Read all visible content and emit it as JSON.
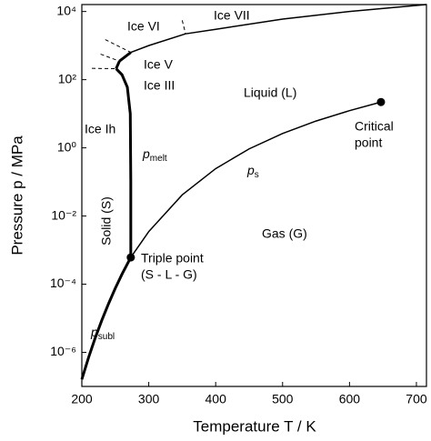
{
  "chart_data": {
    "type": "line",
    "xlabel": "Temperature T / K",
    "ylabel": "Pressure p / MPa",
    "xlim": [
      200,
      715
    ],
    "ylim": [
      1e-07,
      16000
    ],
    "ylog": true,
    "xticks": [
      200,
      300,
      400,
      500,
      600,
      700
    ],
    "yticks": [
      {
        "value": 1e-06,
        "label": "10⁻⁶"
      },
      {
        "value": 0.0001,
        "label": "10⁻⁴"
      },
      {
        "value": 0.01,
        "label": "10⁻²"
      },
      {
        "value": 1,
        "label": "10⁰"
      },
      {
        "value": 100,
        "label": "10²"
      },
      {
        "value": 10000,
        "label": "10⁴"
      }
    ],
    "color": "#000000",
    "series": [
      {
        "x": [
          200,
          210,
          220,
          230,
          240,
          250,
          260,
          273.16
        ],
        "values": [
          1.62e-07,
          7e-07,
          2.66e-06,
          8.9e-06,
          2.7e-05,
          7.6e-05,
          0.000196,
          0.00061
        ],
        "style": "thick"
      },
      {
        "x": [
          273.16,
          300,
          350,
          400,
          450,
          500,
          550,
          600,
          647
        ],
        "values": [
          0.00061,
          0.0035,
          0.0417,
          0.2458,
          0.932,
          2.64,
          6.12,
          12.34,
          22.06
        ],
        "style": "thin"
      },
      {
        "x": [
          273.16,
          273.15,
          272.4,
          268,
          260,
          251.2
        ],
        "values": [
          0.00061,
          0.1,
          10,
          60,
          140,
          209.9
        ],
        "style": "thick"
      },
      {
        "x": [
          251.2,
          256.2
        ],
        "values": [
          209.9,
          350.1
        ],
        "style": "thick"
      },
      {
        "x": [
          256.2,
          273.3
        ],
        "values": [
          350.1,
          632.4
        ],
        "style": "thick"
      },
      {
        "x": [
          273.3,
          300,
          355
        ],
        "values": [
          632.4,
          1000,
          2216
        ],
        "style": "thin"
      },
      {
        "x": [
          355,
          400,
          500,
          600,
          715
        ],
        "values": [
          2216,
          3000,
          6000,
          10000,
          16000
        ],
        "style": "thin"
      },
      {
        "x": [
          215,
          251.2
        ],
        "values": [
          215,
          209.9
        ],
        "style": "dashed"
      },
      {
        "x": [
          228,
          256.2
        ],
        "values": [
          560,
          350.1
        ],
        "style": "dashed"
      },
      {
        "x": [
          235,
          273.3
        ],
        "values": [
          1500,
          632.4
        ],
        "style": "dashed"
      },
      {
        "x": [
          350,
          355
        ],
        "values": [
          5500,
          2216
        ],
        "style": "dashed"
      }
    ],
    "points": {
      "x": [
        273.16,
        647
      ],
      "values": [
        0.00061,
        22.06
      ]
    },
    "annotations": [
      "Ice VI",
      "Ice VII",
      "Ice V",
      "Ice III",
      "Liquid (L)",
      "Ice Ih",
      "Critical",
      "point",
      "Solid (S)",
      "Triple point",
      "(S - L - G)",
      "Gas (G)"
    ],
    "symbols": [
      {
        "symbol": "p",
        "sub": "melt"
      },
      {
        "symbol": "p",
        "sub": "s"
      },
      {
        "symbol": "p",
        "sub": "subl"
      }
    ]
  }
}
